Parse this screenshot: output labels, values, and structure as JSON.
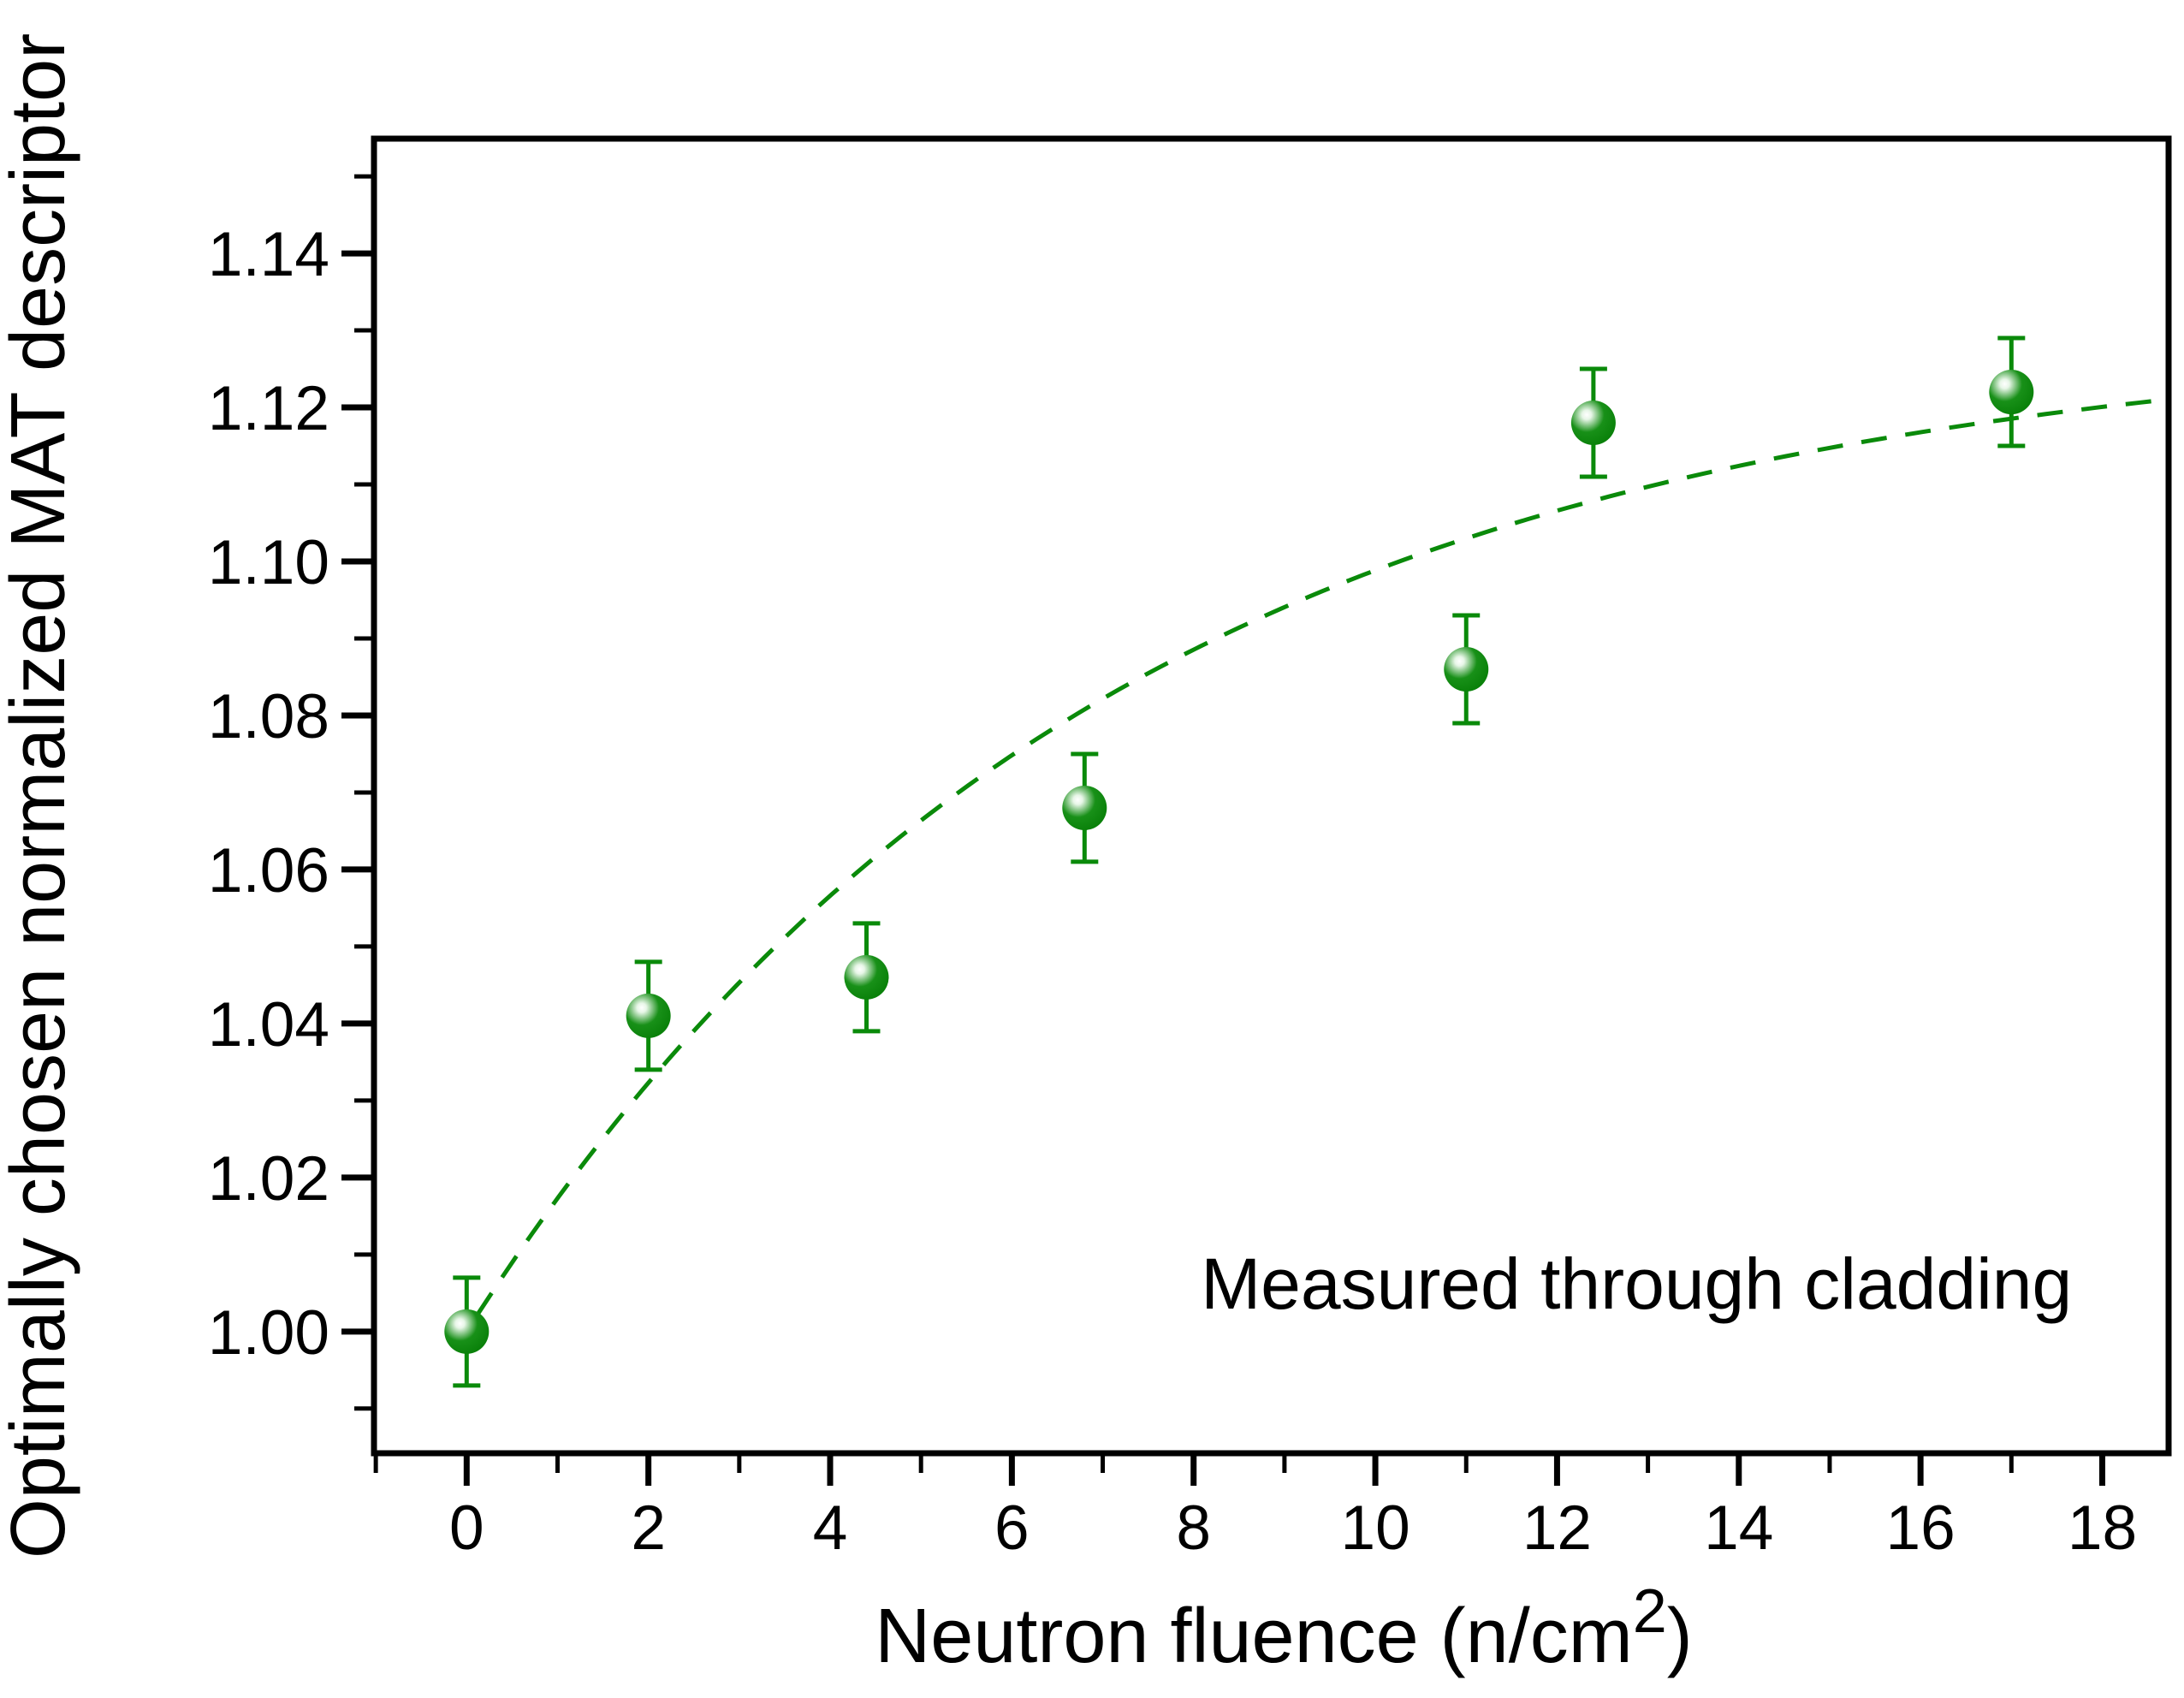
{
  "figure": {
    "background": "#ffffff"
  },
  "chart_data": {
    "type": "scatter",
    "title": "",
    "xlabel": {
      "text": "Neutron fluence  (n/cm²)",
      "base": "Neutron fluence  (n/cm",
      "sup": "2",
      "close": ")"
    },
    "ylabel": "Optimally chosen normalized MAT descriptor",
    "xlim": [
      -1.02,
      18.73
    ],
    "ylim": [
      0.9842,
      1.1549
    ],
    "grid": false,
    "legend": null,
    "x_major_ticks": [
      0,
      2,
      4,
      6,
      8,
      10,
      12,
      14,
      16,
      18
    ],
    "x_minor_ticks": [
      -1,
      1,
      3,
      5,
      7,
      9,
      11,
      13,
      15,
      17
    ],
    "y_major_ticks": [
      1.0,
      1.02,
      1.04,
      1.06,
      1.08,
      1.1,
      1.12,
      1.14
    ],
    "y_minor_ticks": [
      0.99,
      1.01,
      1.03,
      1.05,
      1.07,
      1.09,
      1.11,
      1.13,
      1.15
    ],
    "series": [
      {
        "name": "Optimally chosen normalized MAT descriptor",
        "marker": "glossy-sphere",
        "color": "#0a8a0a",
        "points": [
          {
            "x": 0.0,
            "y": 1.0,
            "err": 0.007
          },
          {
            "x": 2.0,
            "y": 1.041,
            "err": 0.007
          },
          {
            "x": 4.4,
            "y": 1.046,
            "err": 0.007
          },
          {
            "x": 6.8,
            "y": 1.068,
            "err": 0.007
          },
          {
            "x": 11.0,
            "y": 1.086,
            "err": 0.007
          },
          {
            "x": 12.4,
            "y": 1.118,
            "err": 0.007
          },
          {
            "x": 17.0,
            "y": 1.122,
            "err": 0.007
          }
        ]
      }
    ],
    "fit": {
      "name": "dashed saturation fit",
      "equation": "y = 1 + 0.13·(1 − exp(−x/7))",
      "A": 0.13,
      "tau": 7.0,
      "x_start": 0.12,
      "x_end": 18.62,
      "style": "dashed",
      "color": "#0a8a0a"
    },
    "annotation": {
      "text": "Measured through cladding",
      "x": 8.08,
      "y": 1.003
    },
    "colors": {
      "axis": "#000000",
      "series": "#0a8a0a",
      "background": "#ffffff"
    }
  }
}
